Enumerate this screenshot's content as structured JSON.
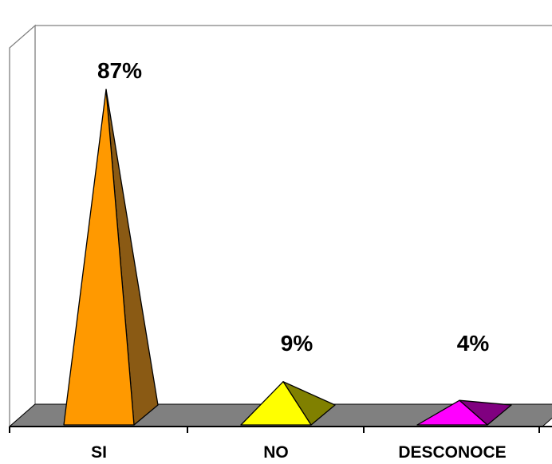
{
  "chart_data": {
    "type": "bar",
    "shape": "pyramid",
    "three_d": true,
    "categories": [
      "SI",
      "NO",
      "DESCONOCE"
    ],
    "values": [
      87,
      9,
      4
    ],
    "data_labels": [
      "87%",
      "9%",
      "4%"
    ],
    "unit": "%",
    "ylim": [
      0,
      100
    ],
    "grid": false,
    "legend": "none",
    "colors": {
      "SI": {
        "front": "#ff9900",
        "side": "#8a5a14"
      },
      "NO": {
        "front": "#ffff00",
        "side": "#808000"
      },
      "DESCONOCE": {
        "front": "#ff00ff",
        "side": "#800080"
      },
      "floor": "#808080",
      "walls": "#ffffff",
      "outline": "#000000",
      "wall_line": "#808080"
    }
  }
}
